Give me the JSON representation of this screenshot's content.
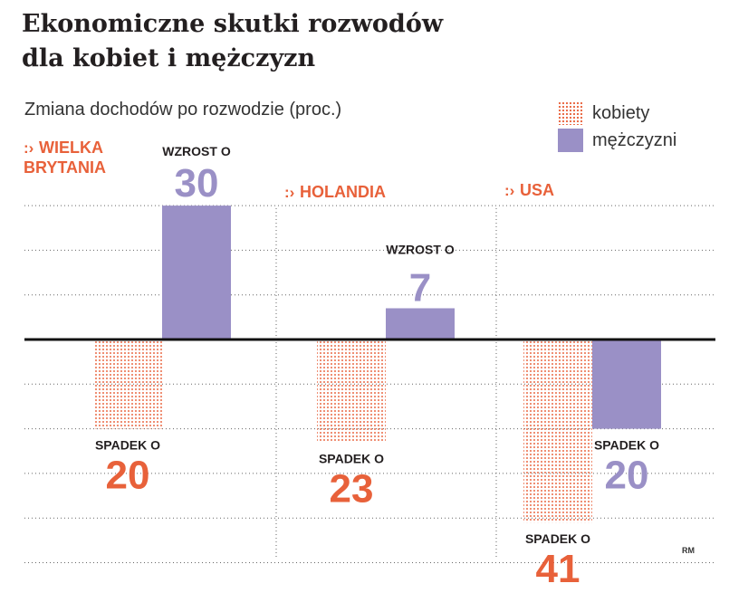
{
  "title_lines": [
    "Ekonomiczne skutki rozwodów",
    "dla kobiet i mężczyzn"
  ],
  "subtitle": "Zmiana dochodów po rozwodzie (proc.)",
  "legend": [
    {
      "label": "kobiety",
      "style": "dotted",
      "color": "#e8613a"
    },
    {
      "label": "mężczyzni",
      "style": "solid",
      "color": "#9a90c6"
    }
  ],
  "credit": "RM",
  "colors": {
    "women": "#e8613a",
    "men": "#9a90c6",
    "country": "#e8613a",
    "text": "#231f20"
  },
  "chart_data": {
    "type": "bar",
    "ylim": [
      -50,
      30
    ],
    "grid": true,
    "categories": [
      "WIELKA BRYTANIA",
      "HOLANDIA",
      "USA"
    ],
    "category_label_lines": [
      [
        "WIELKA",
        "BRYTANIA"
      ],
      [
        "HOLANDIA"
      ],
      [
        "USA"
      ]
    ],
    "series": [
      {
        "name": "kobiety",
        "values": [
          -20,
          -23,
          -41
        ]
      },
      {
        "name": "mężczyzni",
        "values": [
          30,
          7,
          -20
        ]
      }
    ],
    "labels": {
      "increase": "WZROST O",
      "decrease": "SPADEK O"
    }
  }
}
